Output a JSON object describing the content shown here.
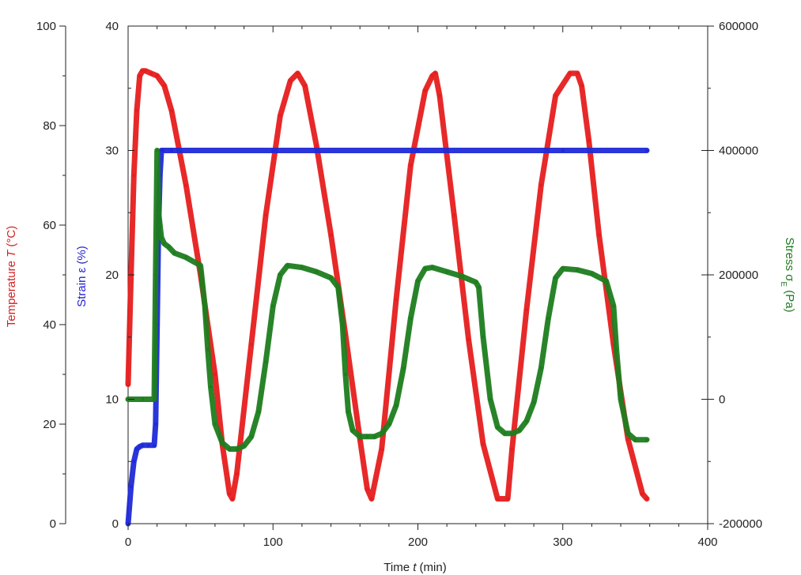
{
  "chart_data": {
    "type": "line",
    "title": "",
    "grid": false,
    "xlabel": {
      "prefix": "Time ",
      "symbol": "t",
      "suffix": " (min)"
    },
    "xlim": [
      0,
      400
    ],
    "xticks": [
      "0",
      "100",
      "200",
      "300",
      "400"
    ],
    "axes": {
      "temperature": {
        "label": {
          "prefix": "Temperature ",
          "symbol": "T",
          "suffix": " (°C)"
        },
        "color": "#d42020",
        "ylim": [
          0,
          100
        ],
        "ticks": [
          "0",
          "20",
          "40",
          "60",
          "80",
          "100"
        ]
      },
      "strain": {
        "label": {
          "prefix": "Strain ",
          "symbol": "ε",
          "suffix": " (%)"
        },
        "color": "#1f1fcf",
        "ylim": [
          0,
          40
        ],
        "ticks": [
          "0",
          "10",
          "20",
          "30",
          "40"
        ]
      },
      "stress": {
        "label": {
          "prefix": "Stress ",
          "symbol": "σ",
          "sub": "E",
          "suffix": " (Pa)"
        },
        "color": "#1f7a1f",
        "ylim": [
          -200000,
          600000
        ],
        "ticks": [
          "-200000",
          "0",
          "200000",
          "400000",
          "600000"
        ]
      }
    },
    "series": [
      {
        "axis": "temperature",
        "color": "#e61e1e",
        "x": [
          0,
          2,
          4,
          6,
          8,
          10,
          12,
          16,
          20,
          25,
          30,
          40,
          50,
          60,
          65,
          70,
          72,
          75,
          85,
          95,
          105,
          112,
          117,
          122,
          130,
          140,
          150,
          160,
          165,
          168,
          175,
          185,
          195,
          205,
          210,
          212,
          215,
          225,
          235,
          245,
          255,
          262,
          265,
          275,
          285,
          295,
          305,
          310,
          313,
          318,
          325,
          335,
          345,
          355,
          358
        ],
        "y": [
          28,
          50,
          70,
          83,
          90,
          91,
          91,
          90.5,
          90,
          88,
          83,
          68,
          50,
          30,
          16,
          6,
          5,
          10,
          36,
          62,
          82,
          89,
          90.5,
          88,
          76,
          58,
          38,
          17,
          7,
          5,
          15,
          45,
          72,
          87,
          90,
          90.5,
          86,
          62,
          37,
          16,
          5,
          5,
          15,
          43,
          68,
          86,
          90.5,
          90.5,
          88,
          77,
          58,
          36,
          17,
          6,
          5
        ]
      },
      {
        "axis": "strain",
        "color": "#1f2ad8",
        "x": [
          0,
          2,
          4,
          6,
          8,
          10,
          14,
          18,
          19,
          20,
          21,
          22,
          23,
          24,
          30,
          100,
          200,
          300,
          358
        ],
        "y": [
          0,
          3,
          5,
          6,
          6.2,
          6.3,
          6.3,
          6.3,
          8,
          16,
          24,
          28,
          30,
          30,
          30,
          30,
          30,
          30,
          30
        ]
      },
      {
        "axis": "stress",
        "color": "#1e7d1e",
        "x": [
          0,
          10,
          18,
          19,
          20,
          21,
          22,
          23,
          25,
          28,
          32,
          40,
          50,
          53,
          55,
          57,
          60,
          65,
          70,
          75,
          80,
          85,
          90,
          95,
          100,
          105,
          110,
          120,
          130,
          140,
          145,
          148,
          150,
          152,
          155,
          160,
          165,
          170,
          175,
          180,
          185,
          190,
          195,
          200,
          205,
          210,
          220,
          230,
          240,
          242,
          245,
          250,
          255,
          260,
          265,
          270,
          275,
          280,
          285,
          290,
          295,
          300,
          310,
          320,
          330,
          335,
          337,
          340,
          345,
          350,
          358
        ],
        "y": [
          0,
          0,
          0,
          200000,
          400000,
          300000,
          280000,
          260000,
          250000,
          245000,
          235000,
          228000,
          215000,
          150000,
          80000,
          20000,
          -40000,
          -70000,
          -80000,
          -80000,
          -75000,
          -60000,
          -20000,
          60000,
          150000,
          200000,
          215000,
          212000,
          205000,
          195000,
          180000,
          120000,
          40000,
          -20000,
          -50000,
          -60000,
          -60000,
          -60000,
          -55000,
          -40000,
          -10000,
          50000,
          130000,
          190000,
          210000,
          212000,
          205000,
          198000,
          188000,
          180000,
          100000,
          0,
          -45000,
          -55000,
          -55000,
          -50000,
          -35000,
          -5000,
          50000,
          130000,
          195000,
          210000,
          208000,
          202000,
          190000,
          150000,
          80000,
          0,
          -55000,
          -65000,
          -65000
        ]
      }
    ]
  }
}
